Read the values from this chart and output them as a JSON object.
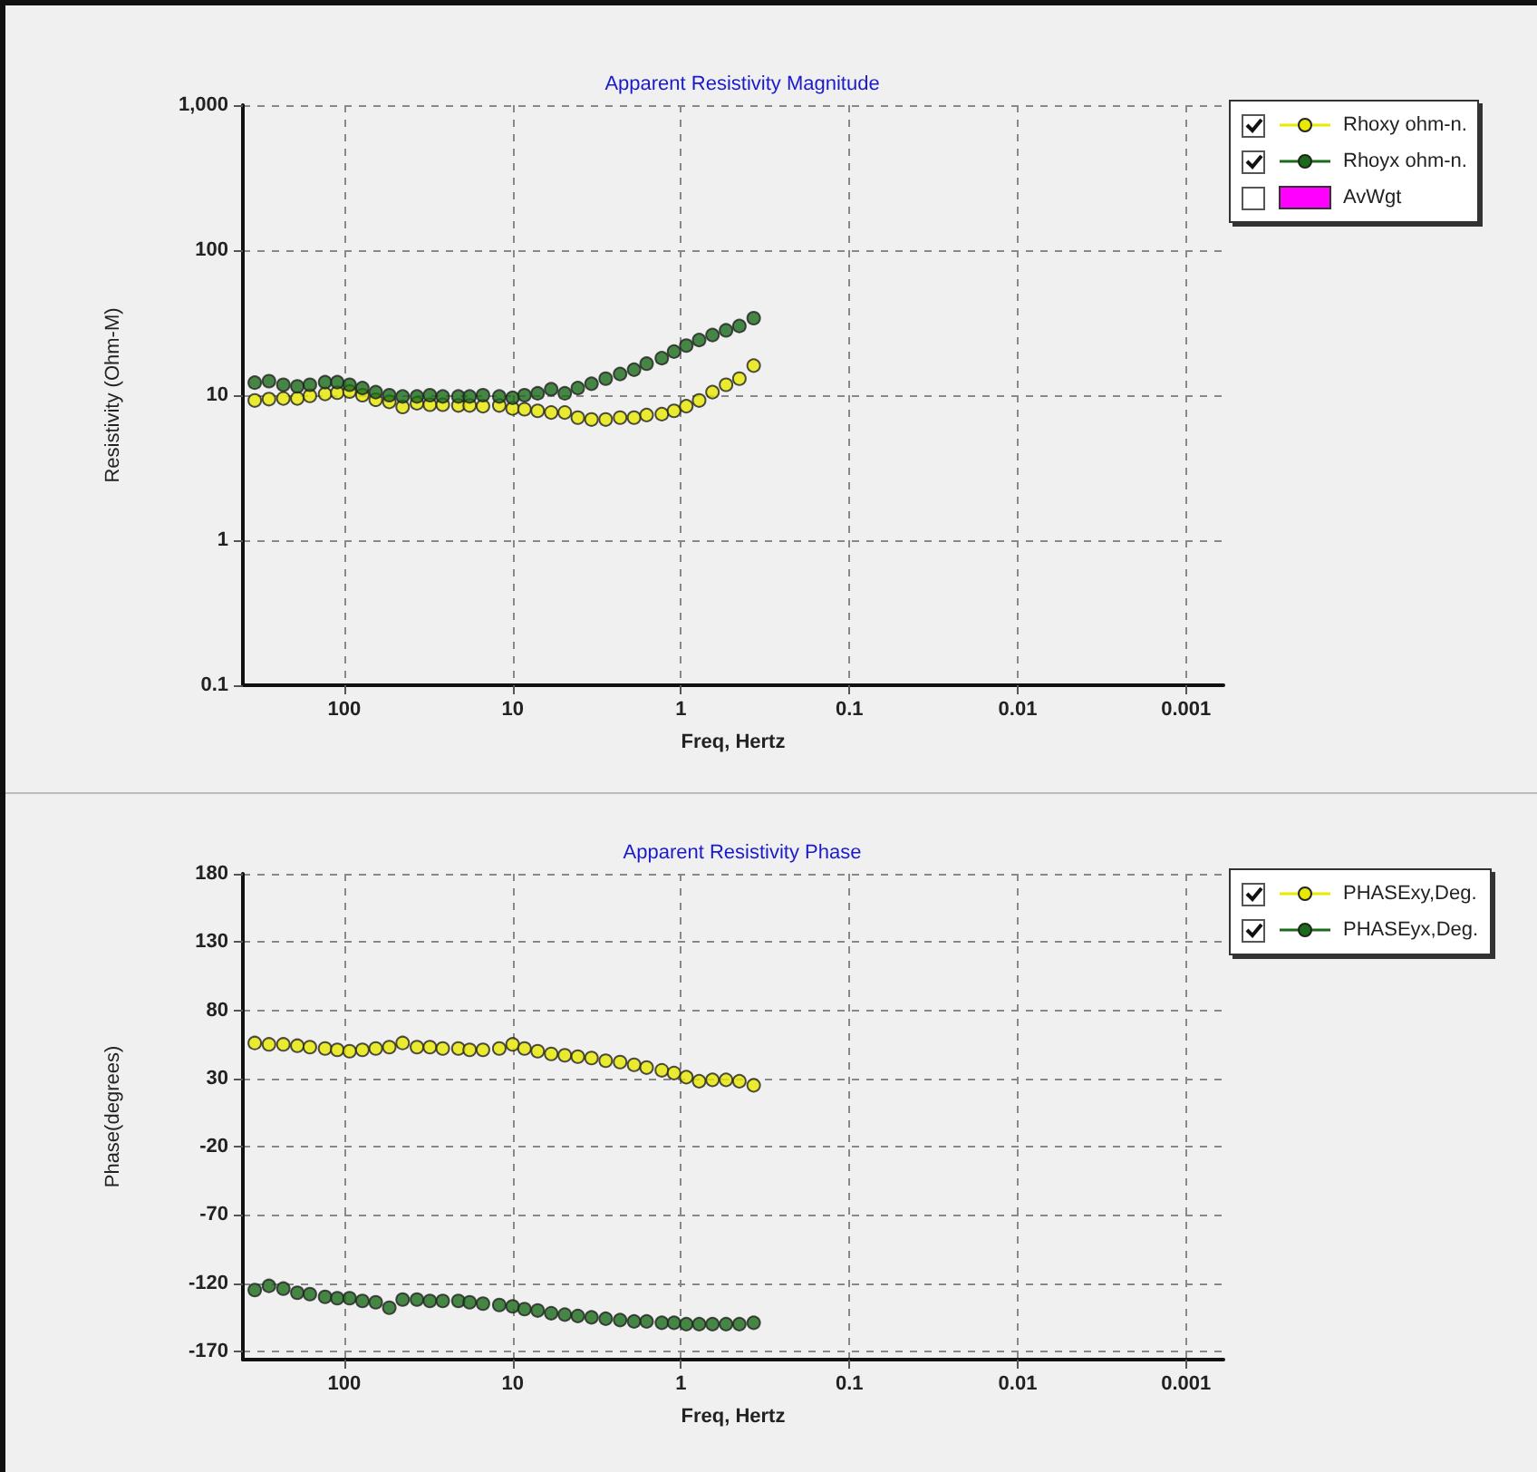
{
  "chart_data": [
    {
      "type": "scatter",
      "title": "Apparent Resistivity Magnitude",
      "xlabel": "Freq, Hertz",
      "ylabel": "Resistivity (Ohm-M)",
      "log": "xy",
      "grid": true,
      "legend": "right",
      "marker": "circle",
      "xlim": [
        400,
        0.0006
      ],
      "xticks": [
        100,
        10,
        1,
        0.1,
        0.01,
        0.001
      ],
      "ylim": [
        0.1,
        1000
      ],
      "yticks": [
        0.1,
        1,
        10,
        100,
        {
          "value": 1000,
          "label": "1,000"
        }
      ],
      "x": [
        340,
        280,
        230,
        190,
        160,
        130,
        110,
        93,
        78,
        65,
        54,
        45,
        37,
        31,
        26,
        21,
        18,
        15,
        12,
        10,
        8.5,
        7.1,
        5.9,
        4.9,
        4.1,
        3.4,
        2.8,
        2.3,
        1.9,
        1.6,
        1.3,
        1.1,
        0.93,
        0.78,
        0.65,
        0.54,
        0.45,
        0.37
      ],
      "series": [
        {
          "name": "Rhoxy ohm-n.",
          "color": "#e8e800",
          "values": [
            9.2,
            9.4,
            9.5,
            9.5,
            9.9,
            10.2,
            10.4,
            10.6,
            10.0,
            9.3,
            9.0,
            8.3,
            8.8,
            8.6,
            8.6,
            8.5,
            8.5,
            8.4,
            8.5,
            8.1,
            8.0,
            7.8,
            7.6,
            7.6,
            7.0,
            6.8,
            6.8,
            7.0,
            7.0,
            7.3,
            7.4,
            7.8,
            8.4,
            9.2,
            10.5,
            11.8,
            13,
            16
          ]
        },
        {
          "name": "Rhoyx ohm-n.",
          "color": "#1a6b1a",
          "values": [
            12.2,
            12.5,
            11.8,
            11.5,
            11.8,
            12.3,
            12.3,
            11.8,
            11.2,
            10.5,
            10.0,
            9.8,
            9.8,
            10,
            9.8,
            9.8,
            9.8,
            10,
            9.8,
            9.6,
            10,
            10.3,
            11,
            10.3,
            11.2,
            12,
            13,
            14,
            15,
            16.5,
            18,
            20,
            22,
            24,
            26,
            28,
            30,
            34
          ]
        },
        {
          "name": "AvWgt",
          "type": "bar",
          "color": "#ff00ff",
          "values": [
            null,
            null,
            null,
            null,
            null,
            null,
            null,
            null,
            null,
            null,
            null,
            null,
            null,
            null,
            null,
            null,
            null,
            null,
            null,
            null,
            null,
            null,
            null,
            null,
            null,
            null,
            null,
            null,
            null,
            null,
            null,
            null,
            null,
            null,
            null,
            null,
            null,
            null
          ]
        }
      ]
    },
    {
      "type": "scatter",
      "title": "Apparent Resistivity Phase",
      "xlabel": "Freq, Hertz",
      "ylabel": "Phase(degrees)",
      "log": "x",
      "grid": true,
      "legend": "right",
      "marker": "circle",
      "xlim": [
        400,
        0.0006
      ],
      "xticks": [
        100,
        10,
        1,
        0.1,
        0.01,
        0.001
      ],
      "ylim": [
        -176,
        180
      ],
      "yticks": [
        -170,
        -120,
        -70,
        -20,
        30,
        80,
        130,
        180
      ],
      "x": [
        340,
        280,
        230,
        190,
        160,
        130,
        110,
        93,
        78,
        65,
        54,
        45,
        37,
        31,
        26,
        21,
        18,
        15,
        12,
        10,
        8.5,
        7.1,
        5.9,
        4.9,
        4.1,
        3.4,
        2.8,
        2.3,
        1.9,
        1.6,
        1.3,
        1.1,
        0.93,
        0.78,
        0.65,
        0.54,
        0.45,
        0.37
      ],
      "series": [
        {
          "name": "PHASExy,Deg.",
          "color": "#e8e800",
          "values": [
            56,
            55,
            55,
            54,
            53,
            52,
            51,
            50,
            51,
            52,
            53,
            56,
            53,
            53,
            52,
            52,
            51,
            51,
            52,
            55,
            52,
            50,
            48,
            47,
            46,
            45,
            43,
            42,
            40,
            38,
            36,
            34,
            31,
            28,
            29,
            29,
            28,
            25
          ]
        },
        {
          "name": "PHASEyx,Deg.",
          "color": "#1a6b1a",
          "values": [
            -125,
            -122,
            -124,
            -127,
            -128,
            -130,
            -131,
            -131,
            -133,
            -134,
            -138,
            -132,
            -132,
            -133,
            -133,
            -133,
            -134,
            -135,
            -136,
            -137,
            -139,
            -140,
            -142,
            -143,
            -144,
            -145,
            -146,
            -147,
            -148,
            -148,
            -149,
            -149,
            -150,
            -150,
            -150,
            -150,
            -150,
            -149
          ]
        }
      ]
    }
  ]
}
